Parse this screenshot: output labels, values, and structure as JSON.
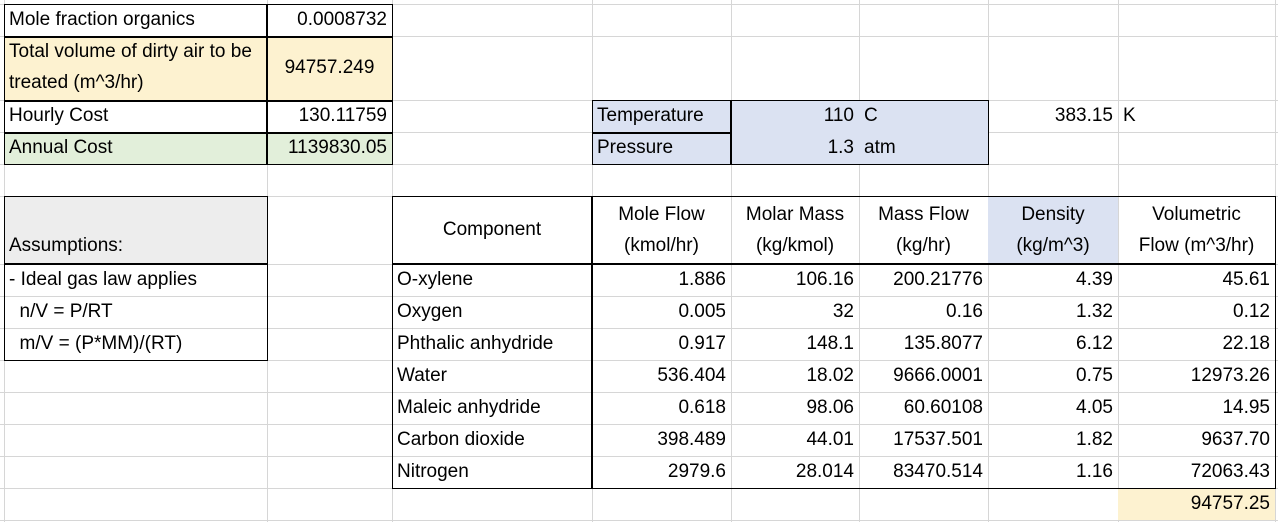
{
  "summary": {
    "mole_fraction_label": "Mole fraction organics",
    "mole_fraction_value": "0.0008732",
    "total_volume_label": "Total volume of dirty air to be treated (m^3/hr)",
    "total_volume_value": "94757.249",
    "hourly_cost_label": "Hourly Cost",
    "hourly_cost_value": "130.11759",
    "annual_cost_label": "Annual Cost",
    "annual_cost_value": "1139830.05"
  },
  "conditions": {
    "temperature_label": "Temperature",
    "temperature_value": "110",
    "temperature_unit": "C",
    "temperature_kelvin": "383.15",
    "kelvin_unit": "K",
    "pressure_label": "Pressure",
    "pressure_value": "1.3",
    "pressure_unit": "atm"
  },
  "assumptions": {
    "title": "Assumptions:",
    "lines": [
      "- Ideal gas law applies",
      "  n/V = P/RT",
      "  m/V = (P*MM)/(RT)"
    ]
  },
  "table": {
    "headers": {
      "component": "Component",
      "mole_flow_1": "Mole Flow",
      "mole_flow_2": "(kmol/hr)",
      "molar_mass_1": "Molar Mass",
      "molar_mass_2": "(kg/kmol)",
      "mass_flow_1": "Mass Flow",
      "mass_flow_2": "(kg/hr)",
      "density_1": "Density",
      "density_2": "(kg/m^3)",
      "vol_flow_1": "Volumetric",
      "vol_flow_2": "Flow (m^3/hr)"
    },
    "rows": [
      {
        "component": "O-xylene",
        "mole_flow": "1.886",
        "molar_mass": "106.16",
        "mass_flow": "200.21776",
        "density": "4.39",
        "vol_flow": "45.61"
      },
      {
        "component": "Oxygen",
        "mole_flow": "0.005",
        "molar_mass": "32",
        "mass_flow": "0.16",
        "density": "1.32",
        "vol_flow": "0.12"
      },
      {
        "component": "Phthalic anhydride",
        "mole_flow": "0.917",
        "molar_mass": "148.1",
        "mass_flow": "135.8077",
        "density": "6.12",
        "vol_flow": "22.18"
      },
      {
        "component": "Water",
        "mole_flow": "536.404",
        "molar_mass": "18.02",
        "mass_flow": "9666.0001",
        "density": "0.75",
        "vol_flow": "12973.26"
      },
      {
        "component": "Maleic anhydride",
        "mole_flow": "0.618",
        "molar_mass": "98.06",
        "mass_flow": "60.60108",
        "density": "4.05",
        "vol_flow": "14.95"
      },
      {
        "component": "Carbon dioxide",
        "mole_flow": "398.489",
        "molar_mass": "44.01",
        "mass_flow": "17537.501",
        "density": "1.82",
        "vol_flow": "9637.70"
      },
      {
        "component": "Nitrogen",
        "mole_flow": "2979.6",
        "molar_mass": "28.014",
        "mass_flow": "83470.514",
        "density": "1.16",
        "vol_flow": "72063.43"
      }
    ],
    "total_vol_flow": "94757.25"
  },
  "colors": {
    "yellow": "#fdf2d0",
    "green": "#e2efda",
    "blue": "#dbe2f2",
    "gray": "#ededed",
    "gridline": "#d6d6d6"
  }
}
